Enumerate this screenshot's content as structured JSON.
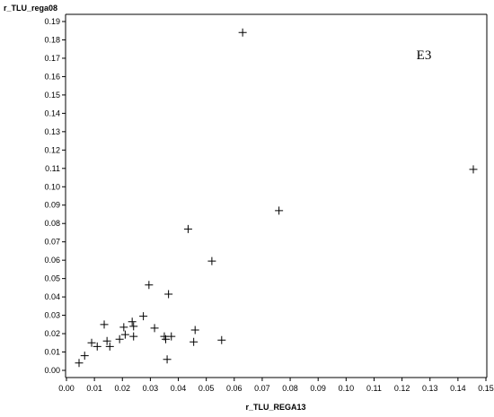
{
  "chart_data": {
    "type": "scatter",
    "xlabel": "r_TLU_REGA13",
    "ylabel": "r_TLU_rega08",
    "annotation": "E3",
    "xlim": [
      0.0,
      0.15
    ],
    "ylim": [
      0.0,
      0.19
    ],
    "x_ticks": [
      "0.00",
      "0.01",
      "0.02",
      "0.03",
      "0.04",
      "0.05",
      "0.06",
      "0.07",
      "0.08",
      "0.09",
      "0.10",
      "0.11",
      "0.12",
      "0.13",
      "0.14",
      "0.15"
    ],
    "y_ticks": [
      "0.00",
      "0.01",
      "0.02",
      "0.03",
      "0.04",
      "0.05",
      "0.06",
      "0.07",
      "0.08",
      "0.09",
      "0.10",
      "0.11",
      "0.12",
      "0.13",
      "0.14",
      "0.15",
      "0.16",
      "0.17",
      "0.18",
      "0.19"
    ],
    "grid": false,
    "marker": "plus",
    "points": [
      {
        "x": 0.0045,
        "y": 0.004
      },
      {
        "x": 0.0065,
        "y": 0.008
      },
      {
        "x": 0.009,
        "y": 0.015
      },
      {
        "x": 0.011,
        "y": 0.013
      },
      {
        "x": 0.0135,
        "y": 0.025
      },
      {
        "x": 0.0145,
        "y": 0.016
      },
      {
        "x": 0.0155,
        "y": 0.013
      },
      {
        "x": 0.019,
        "y": 0.017
      },
      {
        "x": 0.0205,
        "y": 0.0235
      },
      {
        "x": 0.021,
        "y": 0.0195
      },
      {
        "x": 0.0235,
        "y": 0.0265
      },
      {
        "x": 0.024,
        "y": 0.024
      },
      {
        "x": 0.024,
        "y": 0.0185
      },
      {
        "x": 0.0275,
        "y": 0.0295
      },
      {
        "x": 0.0295,
        "y": 0.0465
      },
      {
        "x": 0.0315,
        "y": 0.023
      },
      {
        "x": 0.035,
        "y": 0.0185
      },
      {
        "x": 0.0355,
        "y": 0.017
      },
      {
        "x": 0.036,
        "y": 0.006
      },
      {
        "x": 0.0365,
        "y": 0.0415
      },
      {
        "x": 0.0375,
        "y": 0.0185
      },
      {
        "x": 0.0435,
        "y": 0.077
      },
      {
        "x": 0.0455,
        "y": 0.0155
      },
      {
        "x": 0.046,
        "y": 0.022
      },
      {
        "x": 0.052,
        "y": 0.0595
      },
      {
        "x": 0.0555,
        "y": 0.0165
      },
      {
        "x": 0.063,
        "y": 0.184
      },
      {
        "x": 0.076,
        "y": 0.087
      },
      {
        "x": 0.1455,
        "y": 0.1095
      }
    ]
  }
}
